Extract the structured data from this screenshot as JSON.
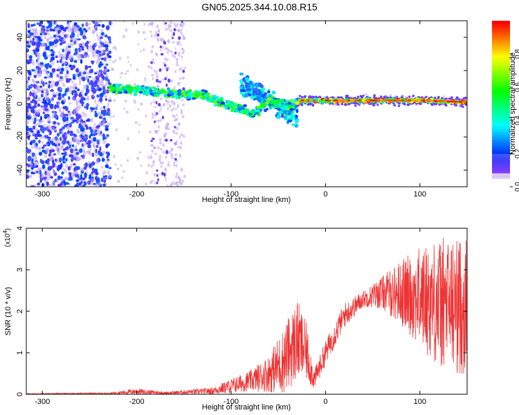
{
  "title": "GN05.2025.344.10.08.R15",
  "chart_data": [
    {
      "type": "heatmap",
      "title": "GN05.2025.344.10.08.R15",
      "xlabel": "Height of straight line (km)",
      "ylabel": "Frequency (Hz)",
      "xlim": [
        -317,
        150
      ],
      "ylim": [
        -50,
        50
      ],
      "x_ticks": [
        "-300",
        "-200",
        "-100",
        "0",
        "100"
      ],
      "y_ticks": [
        "-40",
        "-20",
        "0",
        "20",
        "40"
      ],
      "colorbar": {
        "label": "Normalized spectral amplitude",
        "range": [
          0.0,
          1.0
        ],
        "ticks": [
          "0.0",
          "0.2",
          "0.4",
          "0.6",
          "0.8"
        ]
      },
      "features": [
        {
          "name": "noise-band",
          "x_range": [
            -317,
            -228
          ],
          "freq_range": [
            -50,
            50
          ],
          "amplitude": 0.25
        },
        {
          "name": "sparse-column",
          "x_range": [
            -185,
            -150
          ],
          "freq_range": [
            -50,
            50
          ],
          "amplitude": 0.08
        },
        {
          "name": "signal-track",
          "points": [
            {
              "x": -228,
              "f": 9
            },
            {
              "x": -200,
              "f": 8
            },
            {
              "x": -160,
              "f": 6
            },
            {
              "x": -130,
              "f": 5
            },
            {
              "x": -110,
              "f": 1
            },
            {
              "x": -90,
              "f": -3
            },
            {
              "x": -75,
              "f": -6
            },
            {
              "x": -60,
              "f": 2
            },
            {
              "x": -40,
              "f": -2
            },
            {
              "x": -25,
              "f": 2
            },
            {
              "x": 0,
              "f": 2
            },
            {
              "x": 60,
              "f": 2
            },
            {
              "x": 100,
              "f": 2
            },
            {
              "x": 150,
              "f": 1
            }
          ]
        },
        {
          "name": "scatter-branch",
          "x_range": [
            -90,
            -30
          ],
          "freq_range": [
            -25,
            20
          ],
          "amplitude": 0.35
        }
      ]
    },
    {
      "type": "line",
      "title": "",
      "xlabel": "Height of straight line (km)",
      "ylabel": "SNR (10 * v/v)",
      "y_multiplier": "(x10^4)",
      "y_multiplier_base": "(x10",
      "y_multiplier_exp": "4",
      "y_multiplier_close": ")",
      "xlim": [
        -317,
        150
      ],
      "ylim": [
        0,
        4
      ],
      "x_ticks": [
        "-300",
        "-200",
        "-100",
        "0",
        "100"
      ],
      "y_ticks": [
        "0",
        "1",
        "2",
        "3",
        "4"
      ],
      "color": "#ee3333",
      "envelope": [
        {
          "x": -317,
          "mean": 0.01,
          "amp": 0.01
        },
        {
          "x": -230,
          "mean": 0.02,
          "amp": 0.02
        },
        {
          "x": -200,
          "mean": 0.07,
          "amp": 0.07
        },
        {
          "x": -170,
          "mean": 0.03,
          "amp": 0.03
        },
        {
          "x": -120,
          "mean": 0.08,
          "amp": 0.08
        },
        {
          "x": -100,
          "mean": 0.2,
          "amp": 0.18
        },
        {
          "x": -80,
          "mean": 0.32,
          "amp": 0.25
        },
        {
          "x": -60,
          "mean": 0.5,
          "amp": 0.45
        },
        {
          "x": -45,
          "mean": 0.8,
          "amp": 0.8
        },
        {
          "x": -30,
          "mean": 1.3,
          "amp": 1.0
        },
        {
          "x": -20,
          "mean": 1.0,
          "amp": 0.7
        },
        {
          "x": -12,
          "mean": 0.35,
          "amp": 0.25
        },
        {
          "x": 0,
          "mean": 1.0,
          "amp": 0.3
        },
        {
          "x": 20,
          "mean": 1.9,
          "amp": 0.3
        },
        {
          "x": 40,
          "mean": 2.3,
          "amp": 0.2
        },
        {
          "x": 60,
          "mean": 2.45,
          "amp": 0.4
        },
        {
          "x": 80,
          "mean": 2.45,
          "amp": 0.8
        },
        {
          "x": 100,
          "mean": 2.35,
          "amp": 1.2
        },
        {
          "x": 120,
          "mean": 2.2,
          "amp": 1.6
        },
        {
          "x": 150,
          "mean": 2.1,
          "amp": 1.7
        }
      ]
    }
  ]
}
